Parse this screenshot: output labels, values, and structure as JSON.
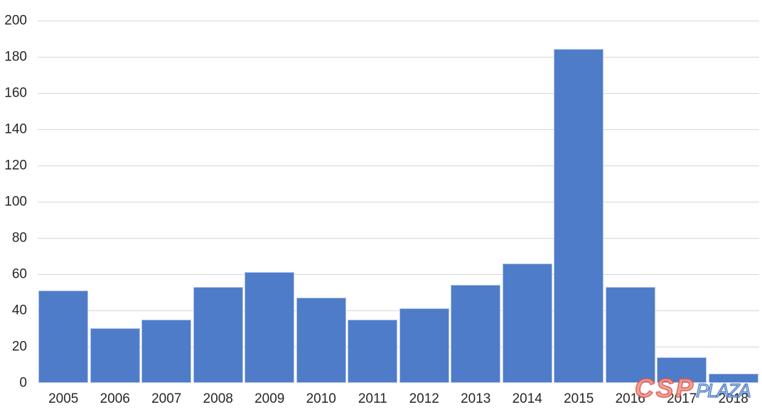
{
  "chart_data": {
    "type": "bar",
    "title": "",
    "xlabel": "",
    "ylabel": "",
    "categories": [
      "2005",
      "2006",
      "2007",
      "2008",
      "2009",
      "2010",
      "2011",
      "2012",
      "2013",
      "2014",
      "2015",
      "2016",
      "2017",
      "2018"
    ],
    "values": [
      51,
      30,
      35,
      53,
      61,
      47,
      35,
      41,
      54,
      66,
      184,
      53,
      14,
      5
    ],
    "ylim": [
      0,
      200
    ],
    "ytick_step": 20,
    "ytick_labels": [
      "0",
      "20",
      "40",
      "60",
      "80",
      "100",
      "120",
      "140",
      "160",
      "180",
      "200"
    ],
    "grid": true,
    "legend": false,
    "bar_color": "#4E7CC9",
    "bar_border_color": "#B3C4E8",
    "gridline_color": "#D6D6D6",
    "tick_label_color": "#262626"
  },
  "watermark": {
    "part1": "CSP",
    "part2": "PLAZA",
    "part1_color": "#E0574B",
    "part2_color": "#4472C4"
  }
}
